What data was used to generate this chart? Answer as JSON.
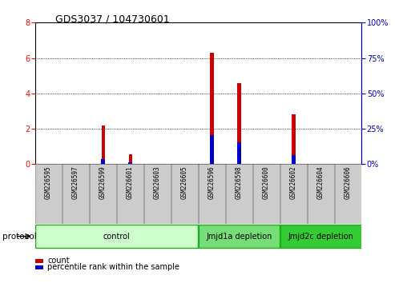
{
  "title": "GDS3037 / 104730601",
  "samples": [
    "GSM226595",
    "GSM226597",
    "GSM226599",
    "GSM226601",
    "GSM226603",
    "GSM226605",
    "GSM226596",
    "GSM226598",
    "GSM226600",
    "GSM226602",
    "GSM226604",
    "GSM226606"
  ],
  "count_values": [
    0,
    0,
    2.2,
    0.55,
    0,
    0,
    6.3,
    4.6,
    0,
    2.8,
    0,
    0
  ],
  "percentile_values": [
    0,
    0,
    0.3,
    0.1,
    0,
    0,
    1.65,
    1.25,
    0,
    0.5,
    0,
    0
  ],
  "groups": [
    {
      "label": "control",
      "start": 0,
      "end": 6,
      "color": "#ccffcc",
      "edge_color": "#22aa22"
    },
    {
      "label": "Jmjd1a depletion",
      "start": 6,
      "end": 9,
      "color": "#77dd77",
      "edge_color": "#22aa22"
    },
    {
      "label": "Jmjd2c depletion",
      "start": 9,
      "end": 12,
      "color": "#33cc33",
      "edge_color": "#22aa22"
    }
  ],
  "left_ylim": [
    0,
    8
  ],
  "right_ylim": [
    0,
    100
  ],
  "left_yticks": [
    0,
    2,
    4,
    6,
    8
  ],
  "right_yticks": [
    0,
    25,
    50,
    75,
    100
  ],
  "right_yticklabels": [
    "0%",
    "25%",
    "50%",
    "75%",
    "100%"
  ],
  "count_color": "#cc0000",
  "percentile_color": "#0000cc",
  "bar_width": 0.12,
  "background_color": "#ffffff",
  "plot_bg_color": "#ffffff",
  "grid_color": "#000000",
  "right_axis_color": "#0000cc",
  "protocol_label": "protocol",
  "legend_count": "count",
  "legend_percentile": "percentile rank within the sample",
  "sample_box_color": "#cccccc",
  "sample_box_edge": "#888888"
}
